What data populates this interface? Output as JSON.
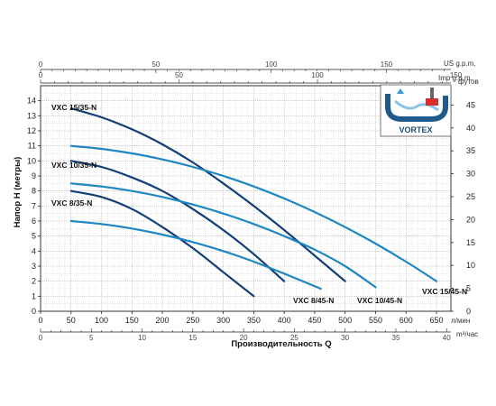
{
  "chart_data": {
    "type": "line",
    "title": "",
    "xlabel": "Производительность Q",
    "ylabel": "Напор H (метры)",
    "x_unit_primary": "л/мин",
    "x_unit_m3": "m³/час",
    "x_unit_usgpm": "US g.p.m.",
    "x_unit_impgpm": "Imp g.p.m.",
    "y_unit_feet": "футов",
    "xlim": [
      0,
      700
    ],
    "ylim": [
      0,
      15
    ],
    "x_ticks": [
      0,
      50,
      100,
      150,
      200,
      250,
      300,
      350,
      400,
      450,
      500,
      550,
      600,
      650
    ],
    "y_ticks": [
      0,
      1,
      2,
      3,
      4,
      5,
      6,
      7,
      8,
      9,
      10,
      11,
      12,
      13,
      14
    ],
    "m3h_ticks": [
      0,
      5,
      10,
      15,
      20,
      25,
      30,
      35,
      40
    ],
    "usgpm_ticks": [
      0,
      50,
      100,
      150
    ],
    "impgpm_ticks": [
      0,
      50,
      100,
      150
    ],
    "feet_ticks": [
      0,
      5,
      10,
      15,
      20,
      25,
      30,
      35,
      40,
      45
    ],
    "grid": true,
    "series": [
      {
        "name": "VXC 8/35-N",
        "color": "#123f78",
        "x": [
          50,
          100,
          150,
          200,
          250,
          300,
          350
        ],
        "y": [
          8.0,
          7.6,
          6.8,
          5.6,
          4.2,
          2.6,
          1.0
        ]
      },
      {
        "name": "VXC 10/35-N",
        "color": "#123f78",
        "x": [
          50,
          100,
          150,
          200,
          250,
          300,
          350,
          400
        ],
        "y": [
          10.0,
          9.6,
          8.9,
          8.0,
          6.8,
          5.4,
          3.8,
          2.0
        ]
      },
      {
        "name": "VXC 15/35-N",
        "color": "#123f78",
        "x": [
          50,
          100,
          150,
          200,
          250,
          300,
          350,
          400,
          450,
          500
        ],
        "y": [
          13.5,
          12.9,
          12.1,
          11.1,
          9.9,
          8.5,
          7.0,
          5.4,
          3.7,
          2.0
        ]
      },
      {
        "name": "VXC 8/45-N",
        "color": "#1f86c4",
        "x": [
          50,
          100,
          150,
          200,
          250,
          300,
          350,
          400,
          460
        ],
        "y": [
          6.0,
          5.8,
          5.5,
          5.1,
          4.6,
          4.0,
          3.3,
          2.5,
          1.5
        ]
      },
      {
        "name": "VXC 10/45-N",
        "color": "#1f86c4",
        "x": [
          50,
          100,
          150,
          200,
          250,
          300,
          350,
          400,
          450,
          500,
          550
        ],
        "y": [
          8.5,
          8.3,
          8.0,
          7.6,
          7.1,
          6.5,
          5.8,
          5.0,
          4.1,
          3.0,
          1.6
        ]
      },
      {
        "name": "VXC 15/45-N",
        "color": "#1f86c4",
        "x": [
          50,
          100,
          150,
          200,
          250,
          300,
          350,
          400,
          450,
          500,
          550,
          600,
          650
        ],
        "y": [
          11.0,
          10.8,
          10.5,
          10.1,
          9.6,
          9.0,
          8.3,
          7.5,
          6.6,
          5.6,
          4.5,
          3.3,
          2.0
        ]
      }
    ]
  },
  "inset": {
    "label": "VORTEX"
  }
}
